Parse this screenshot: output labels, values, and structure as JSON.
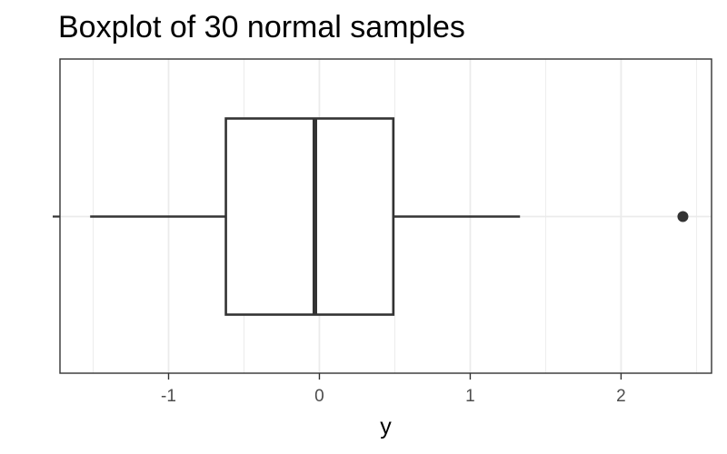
{
  "chart_data": {
    "type": "boxplot",
    "title": "Boxplot of 30 normal samples",
    "xlabel": "y",
    "ylabel": "",
    "xlim": [
      -1.72,
      2.6
    ],
    "ticks": [
      -1,
      0,
      1,
      2
    ],
    "tick_labels": [
      "-1",
      "0",
      "1",
      "2"
    ],
    "grid": true,
    "box": {
      "min": -1.52,
      "q1": -0.62,
      "median": -0.03,
      "q3": 0.49,
      "max": 1.33,
      "outliers": [
        2.41
      ]
    },
    "colors": {
      "box_stroke": "#333333",
      "grid": "#ebebeb",
      "panel_border": "#333333",
      "outlier": "#333333"
    }
  }
}
